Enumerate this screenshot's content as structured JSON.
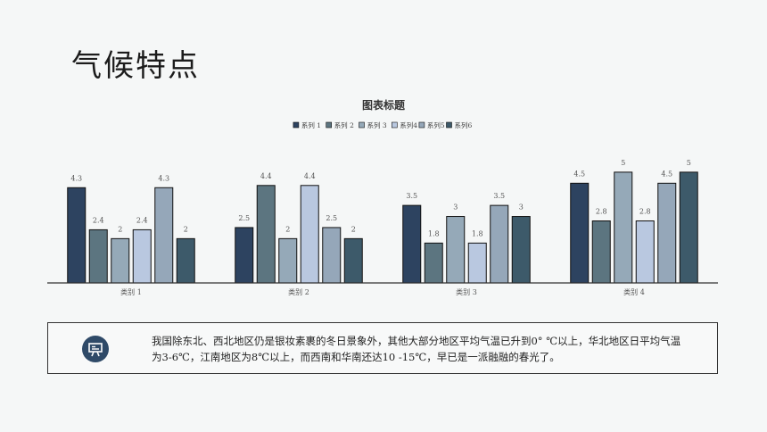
{
  "page": {
    "title": "气候特点"
  },
  "note": {
    "icon": "presentation-board-icon",
    "text": "我国除东北、西北地区仍是银妆素裹的冬日景象外，其他大部分地区平均气温已升到0° ℃以上，华北地区日平均气温为3-6℃，江南地区为8℃以上，而西南和华南还达10 -15℃，早已是一派融融的春光了。"
  },
  "chart_data": {
    "type": "bar",
    "title": "图表标题",
    "categories": [
      "类别 1",
      "类别 2",
      "类别 3",
      "类别 4"
    ],
    "series": [
      {
        "name": "系列 1",
        "color": "#2d4360",
        "values": [
          4.3,
          2.5,
          3.5,
          4.5
        ]
      },
      {
        "name": "系列 2",
        "color": "#5c7580",
        "values": [
          2.4,
          4.4,
          1.8,
          2.8
        ]
      },
      {
        "name": "系列 3",
        "color": "#95a9b8",
        "values": [
          2,
          2,
          3,
          5
        ]
      },
      {
        "name": "系列4",
        "color": "#b9c8e0",
        "values": [
          2.4,
          4.4,
          1.8,
          2.8
        ]
      },
      {
        "name": "系列5",
        "color": "#95a7b9",
        "values": [
          4.3,
          2.5,
          3.5,
          4.5
        ]
      },
      {
        "name": "系列6",
        "color": "#3d5a6a",
        "values": [
          2,
          2,
          3,
          5
        ]
      }
    ],
    "ylim": [
      0,
      5.6
    ],
    "grid": false,
    "legend": "top-center",
    "data_labels": true
  }
}
